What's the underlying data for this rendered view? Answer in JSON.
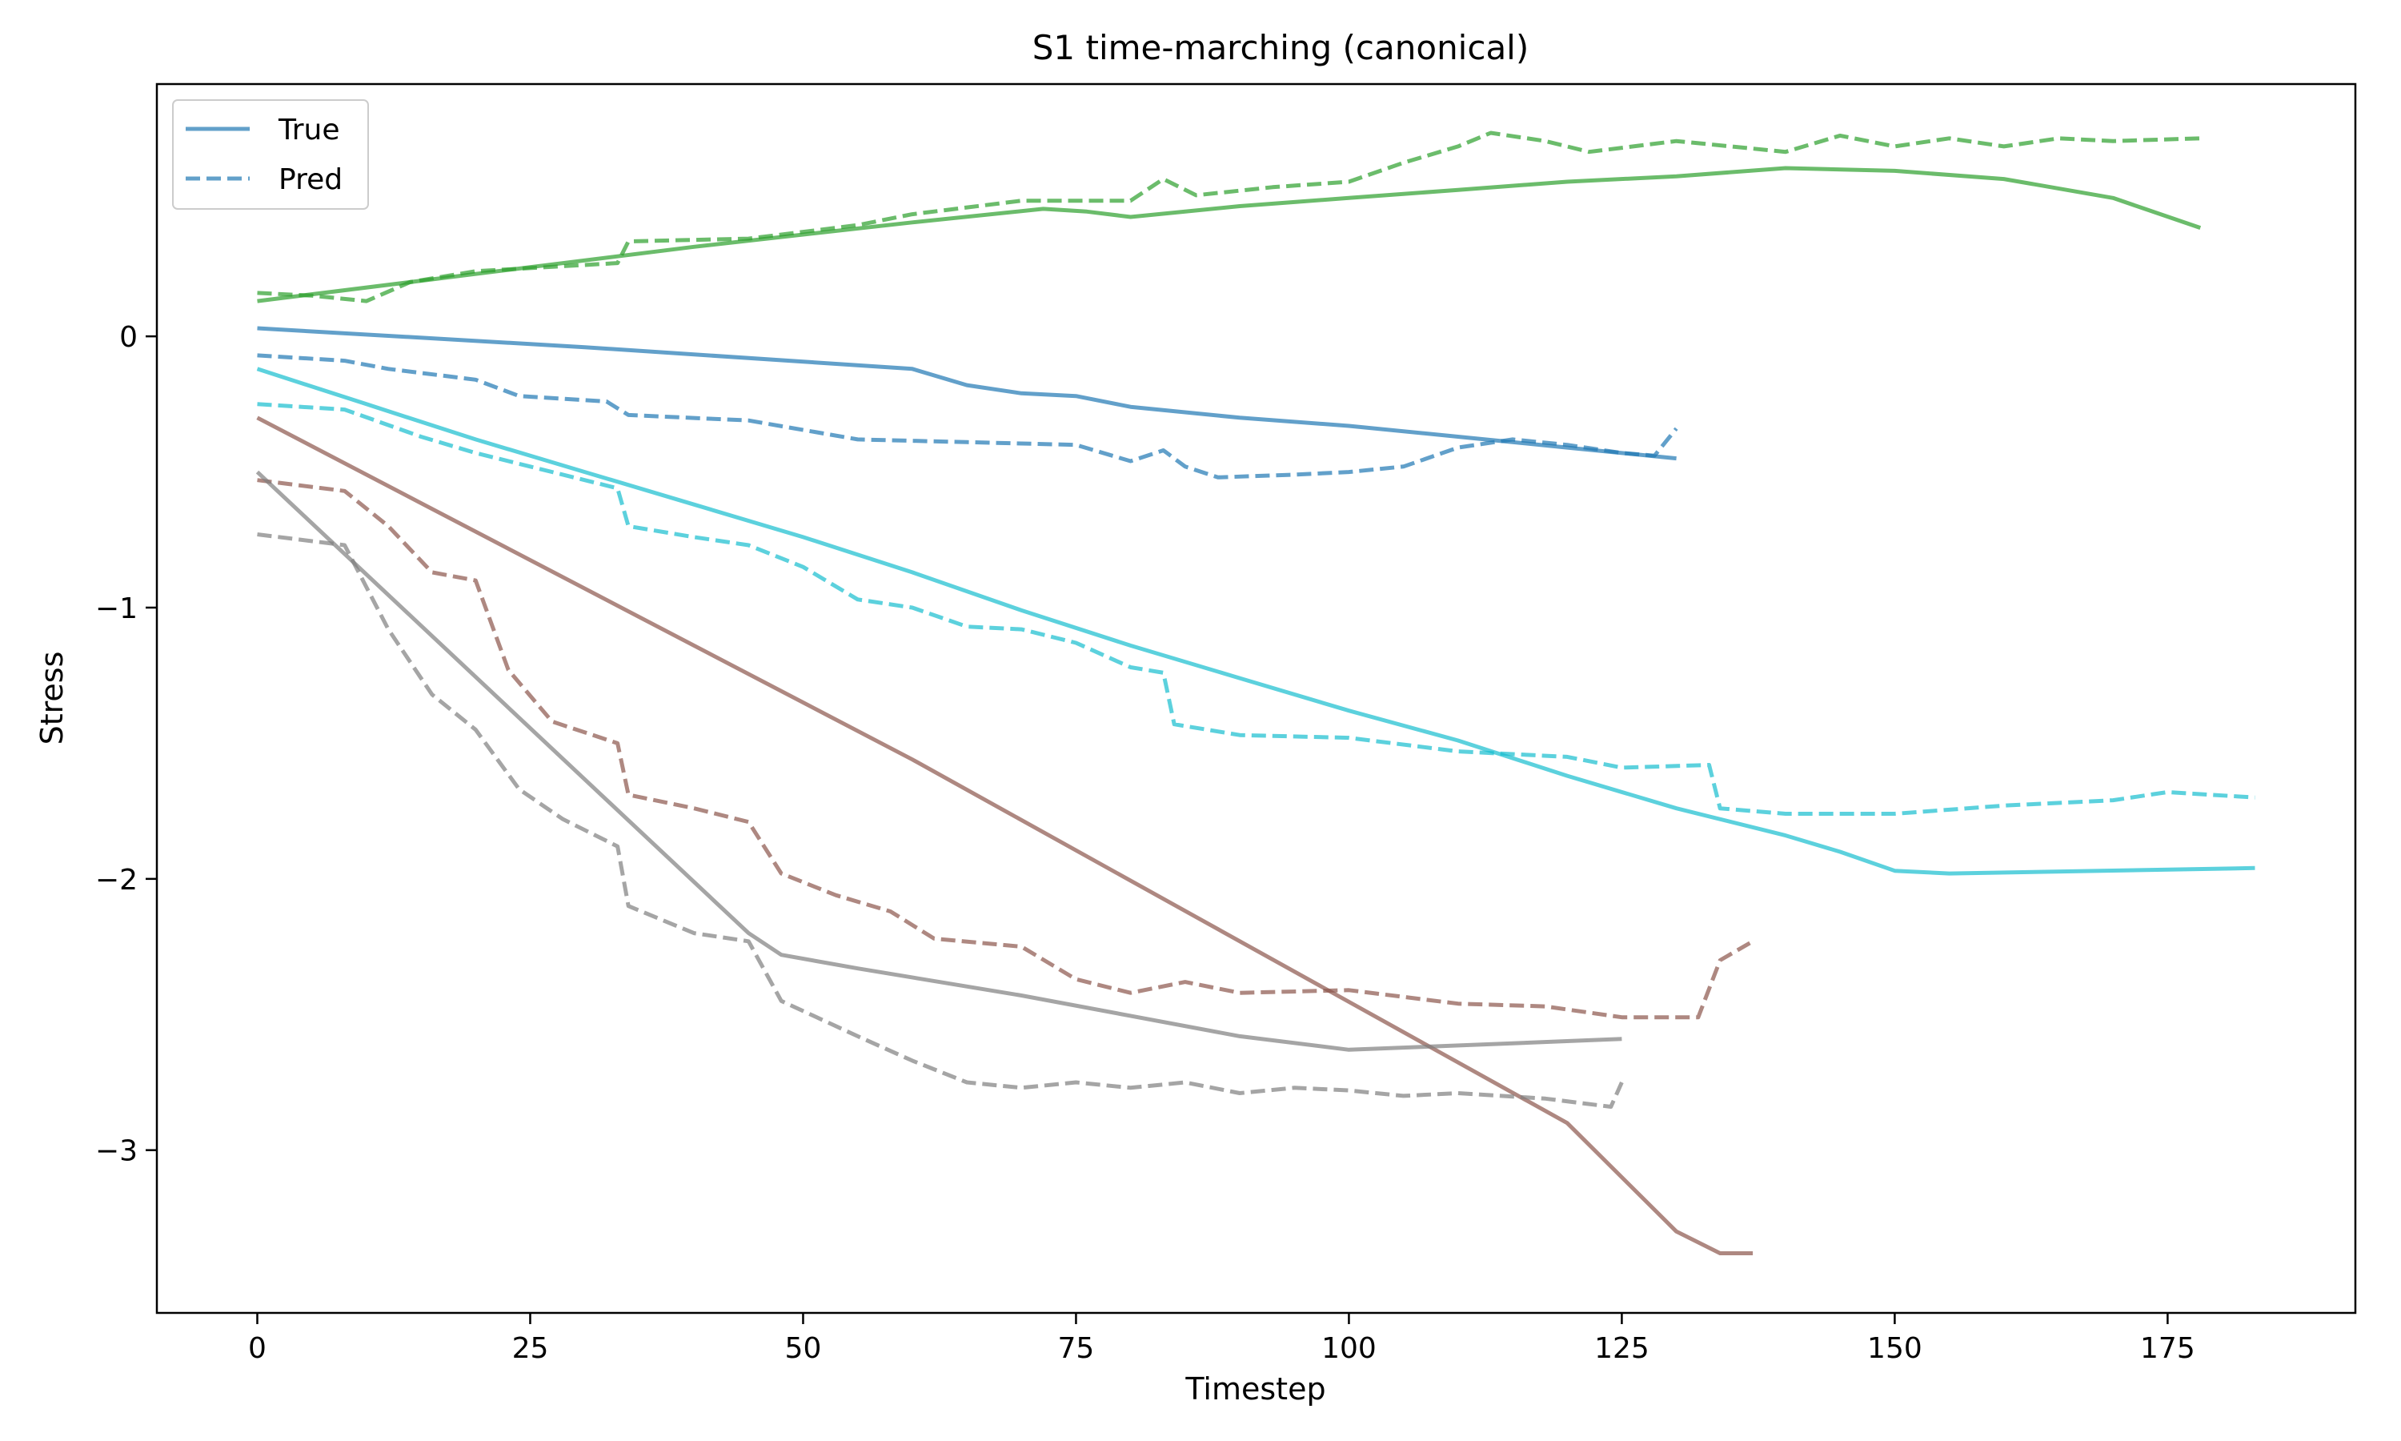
{
  "chart_data": {
    "type": "line",
    "title": "S1 time-marching (canonical)",
    "xlabel": "Timestep",
    "ylabel": "Stress",
    "xlim": [
      -9.2,
      192.2
    ],
    "ylim": [
      -3.6,
      0.93
    ],
    "xticks": [
      0,
      25,
      50,
      75,
      100,
      125,
      150,
      175
    ],
    "yticks": [
      0,
      -1,
      -2,
      -3
    ],
    "xtick_labels": [
      "0",
      "25",
      "50",
      "75",
      "100",
      "125",
      "150",
      "175"
    ],
    "ytick_labels": [
      "0",
      "−1",
      "−2",
      "−3"
    ],
    "grid": false,
    "legend": {
      "position": "top-left",
      "entries": [
        {
          "label": "True",
          "style": "solid",
          "color": "#1f77b4"
        },
        {
          "label": "Pred",
          "style": "dashed",
          "color": "#1f77b4"
        }
      ]
    },
    "series": [
      {
        "color": "#2ca02c",
        "true_points": [
          [
            0,
            0.13
          ],
          [
            20,
            0.23
          ],
          [
            40,
            0.33
          ],
          [
            60,
            0.42
          ],
          [
            72,
            0.47
          ],
          [
            76,
            0.46
          ],
          [
            80,
            0.44
          ],
          [
            85,
            0.46
          ],
          [
            90,
            0.48
          ],
          [
            100,
            0.51
          ],
          [
            110,
            0.54
          ],
          [
            120,
            0.57
          ],
          [
            130,
            0.59
          ],
          [
            140,
            0.62
          ],
          [
            150,
            0.61
          ],
          [
            160,
            0.58
          ],
          [
            170,
            0.51
          ],
          [
            178,
            0.4
          ]
        ],
        "pred_points": [
          [
            0,
            0.16
          ],
          [
            5,
            0.15
          ],
          [
            10,
            0.13
          ],
          [
            14,
            0.2
          ],
          [
            20,
            0.24
          ],
          [
            33,
            0.27
          ],
          [
            34,
            0.35
          ],
          [
            45,
            0.36
          ],
          [
            55,
            0.41
          ],
          [
            60,
            0.45
          ],
          [
            70,
            0.5
          ],
          [
            80,
            0.5
          ],
          [
            83,
            0.58
          ],
          [
            86,
            0.52
          ],
          [
            93,
            0.55
          ],
          [
            100,
            0.57
          ],
          [
            105,
            0.64
          ],
          [
            110,
            0.7
          ],
          [
            113,
            0.75
          ],
          [
            118,
            0.72
          ],
          [
            122,
            0.68
          ],
          [
            130,
            0.72
          ],
          [
            135,
            0.7
          ],
          [
            140,
            0.68
          ],
          [
            145,
            0.74
          ],
          [
            150,
            0.7
          ],
          [
            155,
            0.73
          ],
          [
            160,
            0.7
          ],
          [
            165,
            0.73
          ],
          [
            170,
            0.72
          ],
          [
            178,
            0.73
          ]
        ]
      },
      {
        "color": "#1f77b4",
        "true_points": [
          [
            0,
            0.03
          ],
          [
            30,
            -0.04
          ],
          [
            60,
            -0.12
          ],
          [
            65,
            -0.18
          ],
          [
            70,
            -0.21
          ],
          [
            75,
            -0.22
          ],
          [
            80,
            -0.26
          ],
          [
            90,
            -0.3
          ],
          [
            100,
            -0.33
          ],
          [
            110,
            -0.37
          ],
          [
            120,
            -0.41
          ],
          [
            130,
            -0.45
          ]
        ],
        "pred_points": [
          [
            0,
            -0.07
          ],
          [
            8,
            -0.09
          ],
          [
            12,
            -0.12
          ],
          [
            20,
            -0.16
          ],
          [
            24,
            -0.22
          ],
          [
            32,
            -0.24
          ],
          [
            34,
            -0.29
          ],
          [
            45,
            -0.31
          ],
          [
            55,
            -0.38
          ],
          [
            65,
            -0.39
          ],
          [
            75,
            -0.4
          ],
          [
            80,
            -0.46
          ],
          [
            83,
            -0.42
          ],
          [
            85,
            -0.48
          ],
          [
            88,
            -0.52
          ],
          [
            95,
            -0.51
          ],
          [
            100,
            -0.5
          ],
          [
            105,
            -0.48
          ],
          [
            110,
            -0.41
          ],
          [
            115,
            -0.38
          ],
          [
            120,
            -0.4
          ],
          [
            125,
            -0.43
          ],
          [
            128,
            -0.44
          ],
          [
            130,
            -0.34
          ]
        ]
      },
      {
        "color": "#17becf",
        "true_points": [
          [
            0,
            -0.12
          ],
          [
            10,
            -0.25
          ],
          [
            20,
            -0.38
          ],
          [
            30,
            -0.5
          ],
          [
            40,
            -0.62
          ],
          [
            50,
            -0.74
          ],
          [
            60,
            -0.87
          ],
          [
            70,
            -1.01
          ],
          [
            80,
            -1.14
          ],
          [
            90,
            -1.26
          ],
          [
            100,
            -1.38
          ],
          [
            110,
            -1.49
          ],
          [
            120,
            -1.62
          ],
          [
            130,
            -1.74
          ],
          [
            140,
            -1.84
          ],
          [
            145,
            -1.9
          ],
          [
            150,
            -1.97
          ],
          [
            155,
            -1.98
          ],
          [
            183,
            -1.96
          ]
        ],
        "pred_points": [
          [
            0,
            -0.25
          ],
          [
            8,
            -0.27
          ],
          [
            15,
            -0.37
          ],
          [
            20,
            -0.43
          ],
          [
            25,
            -0.48
          ],
          [
            33,
            -0.56
          ],
          [
            34,
            -0.7
          ],
          [
            40,
            -0.74
          ],
          [
            45,
            -0.77
          ],
          [
            50,
            -0.85
          ],
          [
            55,
            -0.97
          ],
          [
            60,
            -1.0
          ],
          [
            65,
            -1.07
          ],
          [
            70,
            -1.08
          ],
          [
            75,
            -1.13
          ],
          [
            80,
            -1.22
          ],
          [
            83,
            -1.24
          ],
          [
            84,
            -1.43
          ],
          [
            90,
            -1.47
          ],
          [
            100,
            -1.48
          ],
          [
            110,
            -1.53
          ],
          [
            120,
            -1.55
          ],
          [
            125,
            -1.59
          ],
          [
            133,
            -1.58
          ],
          [
            134,
            -1.74
          ],
          [
            140,
            -1.76
          ],
          [
            150,
            -1.76
          ],
          [
            160,
            -1.73
          ],
          [
            170,
            -1.71
          ],
          [
            175,
            -1.68
          ],
          [
            183,
            -1.7
          ]
        ]
      },
      {
        "color": "#8c564b",
        "true_points": [
          [
            0,
            -0.3
          ],
          [
            60,
            -1.56
          ],
          [
            120,
            -2.9
          ],
          [
            130,
            -3.3
          ],
          [
            134,
            -3.38
          ],
          [
            137,
            -3.38
          ]
        ],
        "pred_points": [
          [
            0,
            -0.53
          ],
          [
            8,
            -0.57
          ],
          [
            12,
            -0.7
          ],
          [
            16,
            -0.87
          ],
          [
            20,
            -0.9
          ],
          [
            23,
            -1.23
          ],
          [
            27,
            -1.42
          ],
          [
            33,
            -1.5
          ],
          [
            34,
            -1.69
          ],
          [
            40,
            -1.74
          ],
          [
            45,
            -1.79
          ],
          [
            48,
            -1.98
          ],
          [
            53,
            -2.06
          ],
          [
            58,
            -2.12
          ],
          [
            62,
            -2.22
          ],
          [
            70,
            -2.25
          ],
          [
            75,
            -2.37
          ],
          [
            80,
            -2.42
          ],
          [
            85,
            -2.38
          ],
          [
            90,
            -2.42
          ],
          [
            100,
            -2.41
          ],
          [
            110,
            -2.46
          ],
          [
            118,
            -2.47
          ],
          [
            125,
            -2.51
          ],
          [
            132,
            -2.51
          ],
          [
            134,
            -2.3
          ],
          [
            137,
            -2.23
          ]
        ]
      },
      {
        "color": "#7f7f7f",
        "true_points": [
          [
            0,
            -0.5
          ],
          [
            45,
            -2.2
          ],
          [
            48,
            -2.28
          ],
          [
            55,
            -2.33
          ],
          [
            70,
            -2.43
          ],
          [
            90,
            -2.58
          ],
          [
            100,
            -2.63
          ],
          [
            125,
            -2.59
          ]
        ],
        "pred_points": [
          [
            0,
            -0.73
          ],
          [
            8,
            -0.77
          ],
          [
            12,
            -1.08
          ],
          [
            16,
            -1.32
          ],
          [
            20,
            -1.45
          ],
          [
            24,
            -1.67
          ],
          [
            28,
            -1.78
          ],
          [
            33,
            -1.88
          ],
          [
            34,
            -2.1
          ],
          [
            40,
            -2.2
          ],
          [
            45,
            -2.23
          ],
          [
            48,
            -2.45
          ],
          [
            55,
            -2.58
          ],
          [
            60,
            -2.67
          ],
          [
            65,
            -2.75
          ],
          [
            70,
            -2.77
          ],
          [
            75,
            -2.75
          ],
          [
            80,
            -2.77
          ],
          [
            85,
            -2.75
          ],
          [
            90,
            -2.79
          ],
          [
            95,
            -2.77
          ],
          [
            100,
            -2.78
          ],
          [
            105,
            -2.8
          ],
          [
            110,
            -2.79
          ],
          [
            118,
            -2.81
          ],
          [
            124,
            -2.84
          ],
          [
            125,
            -2.75
          ]
        ]
      }
    ]
  }
}
